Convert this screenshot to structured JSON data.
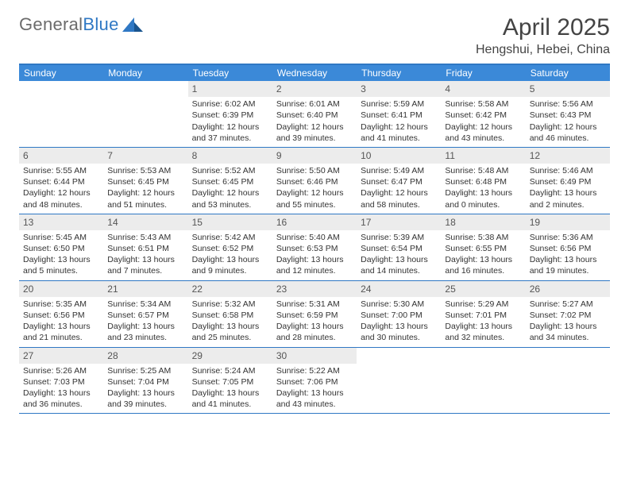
{
  "brand": {
    "part1": "General",
    "part2": "Blue"
  },
  "title": "April 2025",
  "location": "Hengshui, Hebei, China",
  "colors": {
    "header_bar": "#3b89d8",
    "week_border": "#2f78c4",
    "daynum_bg": "#ececec",
    "text": "#333333",
    "logo_gray": "#6b6b6b",
    "logo_blue": "#2f78c4"
  },
  "day_names": [
    "Sunday",
    "Monday",
    "Tuesday",
    "Wednesday",
    "Thursday",
    "Friday",
    "Saturday"
  ],
  "weeks": [
    [
      {
        "n": "",
        "sunrise": "",
        "sunset": "",
        "daylight": ""
      },
      {
        "n": "",
        "sunrise": "",
        "sunset": "",
        "daylight": ""
      },
      {
        "n": "1",
        "sunrise": "Sunrise: 6:02 AM",
        "sunset": "Sunset: 6:39 PM",
        "daylight": "Daylight: 12 hours and 37 minutes."
      },
      {
        "n": "2",
        "sunrise": "Sunrise: 6:01 AM",
        "sunset": "Sunset: 6:40 PM",
        "daylight": "Daylight: 12 hours and 39 minutes."
      },
      {
        "n": "3",
        "sunrise": "Sunrise: 5:59 AM",
        "sunset": "Sunset: 6:41 PM",
        "daylight": "Daylight: 12 hours and 41 minutes."
      },
      {
        "n": "4",
        "sunrise": "Sunrise: 5:58 AM",
        "sunset": "Sunset: 6:42 PM",
        "daylight": "Daylight: 12 hours and 43 minutes."
      },
      {
        "n": "5",
        "sunrise": "Sunrise: 5:56 AM",
        "sunset": "Sunset: 6:43 PM",
        "daylight": "Daylight: 12 hours and 46 minutes."
      }
    ],
    [
      {
        "n": "6",
        "sunrise": "Sunrise: 5:55 AM",
        "sunset": "Sunset: 6:44 PM",
        "daylight": "Daylight: 12 hours and 48 minutes."
      },
      {
        "n": "7",
        "sunrise": "Sunrise: 5:53 AM",
        "sunset": "Sunset: 6:45 PM",
        "daylight": "Daylight: 12 hours and 51 minutes."
      },
      {
        "n": "8",
        "sunrise": "Sunrise: 5:52 AM",
        "sunset": "Sunset: 6:45 PM",
        "daylight": "Daylight: 12 hours and 53 minutes."
      },
      {
        "n": "9",
        "sunrise": "Sunrise: 5:50 AM",
        "sunset": "Sunset: 6:46 PM",
        "daylight": "Daylight: 12 hours and 55 minutes."
      },
      {
        "n": "10",
        "sunrise": "Sunrise: 5:49 AM",
        "sunset": "Sunset: 6:47 PM",
        "daylight": "Daylight: 12 hours and 58 minutes."
      },
      {
        "n": "11",
        "sunrise": "Sunrise: 5:48 AM",
        "sunset": "Sunset: 6:48 PM",
        "daylight": "Daylight: 13 hours and 0 minutes."
      },
      {
        "n": "12",
        "sunrise": "Sunrise: 5:46 AM",
        "sunset": "Sunset: 6:49 PM",
        "daylight": "Daylight: 13 hours and 2 minutes."
      }
    ],
    [
      {
        "n": "13",
        "sunrise": "Sunrise: 5:45 AM",
        "sunset": "Sunset: 6:50 PM",
        "daylight": "Daylight: 13 hours and 5 minutes."
      },
      {
        "n": "14",
        "sunrise": "Sunrise: 5:43 AM",
        "sunset": "Sunset: 6:51 PM",
        "daylight": "Daylight: 13 hours and 7 minutes."
      },
      {
        "n": "15",
        "sunrise": "Sunrise: 5:42 AM",
        "sunset": "Sunset: 6:52 PM",
        "daylight": "Daylight: 13 hours and 9 minutes."
      },
      {
        "n": "16",
        "sunrise": "Sunrise: 5:40 AM",
        "sunset": "Sunset: 6:53 PM",
        "daylight": "Daylight: 13 hours and 12 minutes."
      },
      {
        "n": "17",
        "sunrise": "Sunrise: 5:39 AM",
        "sunset": "Sunset: 6:54 PM",
        "daylight": "Daylight: 13 hours and 14 minutes."
      },
      {
        "n": "18",
        "sunrise": "Sunrise: 5:38 AM",
        "sunset": "Sunset: 6:55 PM",
        "daylight": "Daylight: 13 hours and 16 minutes."
      },
      {
        "n": "19",
        "sunrise": "Sunrise: 5:36 AM",
        "sunset": "Sunset: 6:56 PM",
        "daylight": "Daylight: 13 hours and 19 minutes."
      }
    ],
    [
      {
        "n": "20",
        "sunrise": "Sunrise: 5:35 AM",
        "sunset": "Sunset: 6:56 PM",
        "daylight": "Daylight: 13 hours and 21 minutes."
      },
      {
        "n": "21",
        "sunrise": "Sunrise: 5:34 AM",
        "sunset": "Sunset: 6:57 PM",
        "daylight": "Daylight: 13 hours and 23 minutes."
      },
      {
        "n": "22",
        "sunrise": "Sunrise: 5:32 AM",
        "sunset": "Sunset: 6:58 PM",
        "daylight": "Daylight: 13 hours and 25 minutes."
      },
      {
        "n": "23",
        "sunrise": "Sunrise: 5:31 AM",
        "sunset": "Sunset: 6:59 PM",
        "daylight": "Daylight: 13 hours and 28 minutes."
      },
      {
        "n": "24",
        "sunrise": "Sunrise: 5:30 AM",
        "sunset": "Sunset: 7:00 PM",
        "daylight": "Daylight: 13 hours and 30 minutes."
      },
      {
        "n": "25",
        "sunrise": "Sunrise: 5:29 AM",
        "sunset": "Sunset: 7:01 PM",
        "daylight": "Daylight: 13 hours and 32 minutes."
      },
      {
        "n": "26",
        "sunrise": "Sunrise: 5:27 AM",
        "sunset": "Sunset: 7:02 PM",
        "daylight": "Daylight: 13 hours and 34 minutes."
      }
    ],
    [
      {
        "n": "27",
        "sunrise": "Sunrise: 5:26 AM",
        "sunset": "Sunset: 7:03 PM",
        "daylight": "Daylight: 13 hours and 36 minutes."
      },
      {
        "n": "28",
        "sunrise": "Sunrise: 5:25 AM",
        "sunset": "Sunset: 7:04 PM",
        "daylight": "Daylight: 13 hours and 39 minutes."
      },
      {
        "n": "29",
        "sunrise": "Sunrise: 5:24 AM",
        "sunset": "Sunset: 7:05 PM",
        "daylight": "Daylight: 13 hours and 41 minutes."
      },
      {
        "n": "30",
        "sunrise": "Sunrise: 5:22 AM",
        "sunset": "Sunset: 7:06 PM",
        "daylight": "Daylight: 13 hours and 43 minutes."
      },
      {
        "n": "",
        "sunrise": "",
        "sunset": "",
        "daylight": ""
      },
      {
        "n": "",
        "sunrise": "",
        "sunset": "",
        "daylight": ""
      },
      {
        "n": "",
        "sunrise": "",
        "sunset": "",
        "daylight": ""
      }
    ]
  ]
}
